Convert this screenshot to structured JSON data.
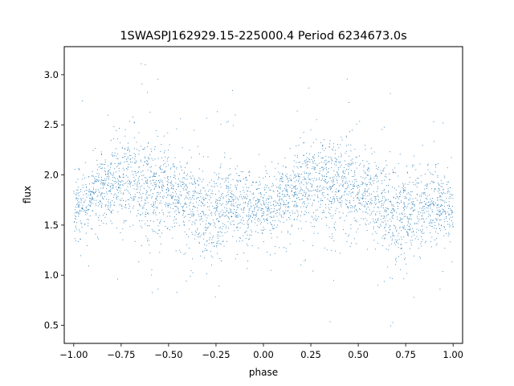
{
  "chart_data": {
    "type": "scatter",
    "title": "1SWASPJ162929.15-225000.4 Period 6234673.0s",
    "xlabel": "phase",
    "ylabel": "flux",
    "xlim": [
      -1.05,
      1.05
    ],
    "ylim": [
      0.32,
      3.28
    ],
    "xticks": [
      -1.0,
      -0.75,
      -0.5,
      -0.25,
      0.0,
      0.25,
      0.5,
      0.75,
      1.0
    ],
    "xtick_labels": [
      "−1.00",
      "−0.75",
      "−0.50",
      "−0.25",
      "0.00",
      "0.25",
      "0.50",
      "0.75",
      "1.00"
    ],
    "yticks": [
      0.5,
      1.0,
      1.5,
      2.0,
      2.5,
      3.0
    ],
    "ytick_labels": [
      "0.5",
      "1.0",
      "1.5",
      "2.0",
      "2.5",
      "3.0"
    ],
    "grid": false,
    "marker_color": "#1f77b4",
    "periodic_in_phase": true,
    "flux_envelope": {
      "phase": [
        0.0,
        0.05,
        0.1,
        0.15,
        0.2,
        0.25,
        0.3,
        0.35,
        0.4,
        0.45,
        0.5,
        0.55,
        0.6,
        0.65,
        0.7,
        0.75,
        0.8,
        0.85,
        0.9,
        0.95,
        1.0
      ],
      "median_flux": [
        1.68,
        1.72,
        1.8,
        1.87,
        1.9,
        1.92,
        1.93,
        1.9,
        1.87,
        1.85,
        1.83,
        1.8,
        1.74,
        1.68,
        1.58,
        1.62,
        1.66,
        1.7,
        1.7,
        1.68,
        1.68
      ],
      "flux_spread": [
        0.16,
        0.15,
        0.16,
        0.18,
        0.2,
        0.22,
        0.22,
        0.22,
        0.24,
        0.22,
        0.2,
        0.2,
        0.2,
        0.22,
        0.25,
        0.22,
        0.2,
        0.18,
        0.17,
        0.16,
        0.16
      ]
    },
    "flux_range": [
      0.45,
      3.15
    ]
  }
}
